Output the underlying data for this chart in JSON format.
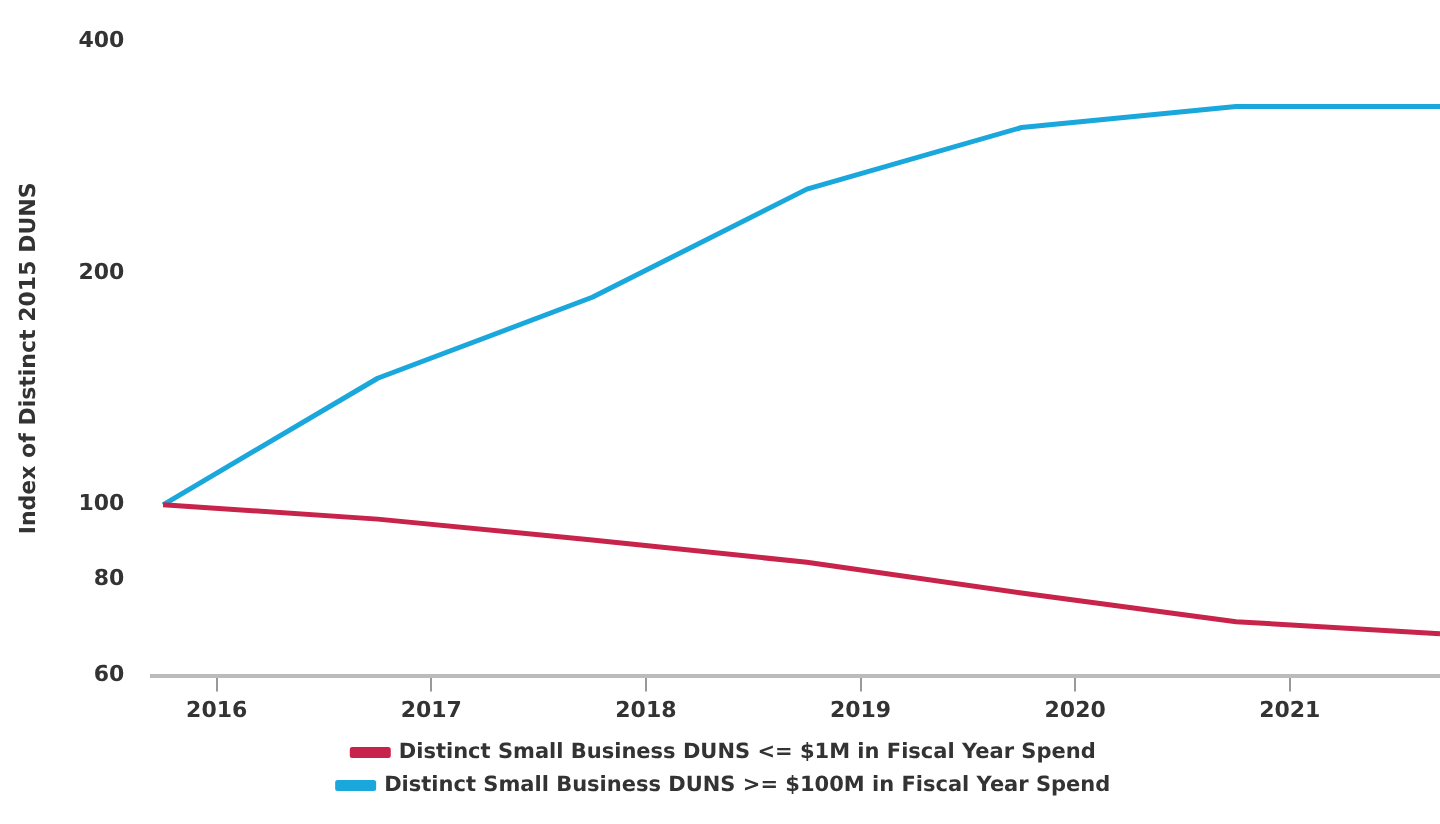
{
  "chart_data": {
    "type": "line",
    "ylabel": "Index of Distinct 2015 DUNS",
    "log": "y",
    "grid": false,
    "legend": "bottom",
    "marker": "none",
    "line_style": "solid",
    "xlim": [
      2015.7,
      2021.7
    ],
    "xticks": [
      2016,
      2017,
      2018,
      2019,
      2020,
      2021
    ],
    "ylim": [
      60,
      400
    ],
    "yticks": [
      60,
      80,
      100,
      200,
      400
    ],
    "series": [
      {
        "name": "Distinct Small Business DUNS <= $1M in Fiscal Year Spend",
        "color": "#c8234a",
        "x": [
          2015.75,
          2016.75,
          2017.75,
          2018.75,
          2019.75,
          2020.75,
          2021.7
        ],
        "values": [
          100,
          95.8,
          90,
          84.2,
          76.8,
          70.5,
          68
        ]
      },
      {
        "name": "Distinct Small Business DUNS >= $100M in Fiscal Year Spend",
        "color": "#1aa7dc",
        "x": [
          2015.75,
          2016.75,
          2017.75,
          2018.75,
          2019.75,
          2020.75,
          2021.7
        ],
        "values": [
          100,
          146,
          186,
          257,
          309,
          329,
          329
        ]
      }
    ]
  }
}
